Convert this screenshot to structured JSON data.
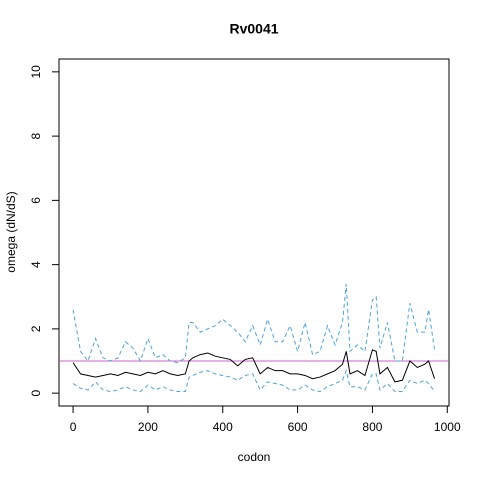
{
  "chart_data": {
    "type": "line",
    "title": "Rv0041",
    "xlabel": "codon",
    "ylabel": "omega (dN/dS)",
    "x": [
      0,
      20,
      40,
      60,
      80,
      100,
      120,
      140,
      160,
      180,
      200,
      220,
      240,
      260,
      280,
      300,
      310,
      320,
      340,
      360,
      380,
      400,
      420,
      440,
      460,
      480,
      500,
      520,
      540,
      560,
      580,
      600,
      620,
      640,
      660,
      680,
      700,
      720,
      730,
      740,
      760,
      780,
      800,
      810,
      820,
      840,
      860,
      880,
      900,
      920,
      940,
      950,
      966
    ],
    "series": [
      {
        "color": "#4aa3df",
        "dashed": true,
        "values": [
          2.6,
          1.3,
          1.0,
          1.7,
          1.1,
          1.0,
          1.1,
          1.6,
          1.4,
          1.0,
          1.7,
          1.1,
          1.2,
          1.0,
          0.95,
          1.1,
          2.2,
          2.2,
          1.9,
          2.0,
          2.1,
          2.3,
          2.1,
          1.9,
          1.6,
          2.1,
          1.5,
          2.3,
          1.6,
          1.6,
          2.1,
          1.3,
          2.2,
          1.2,
          1.3,
          2.1,
          1.5,
          2.2,
          3.4,
          1.3,
          1.5,
          1.3,
          2.9,
          3.0,
          1.4,
          2.2,
          1.0,
          1.0,
          2.8,
          1.9,
          1.9,
          2.6,
          1.35
        ]
      },
      {
        "color": "#000000",
        "dashed": false,
        "values": [
          0.95,
          0.6,
          0.55,
          0.5,
          0.55,
          0.6,
          0.55,
          0.65,
          0.6,
          0.55,
          0.65,
          0.6,
          0.7,
          0.6,
          0.55,
          0.6,
          1.0,
          1.1,
          1.2,
          1.25,
          1.15,
          1.1,
          1.05,
          0.85,
          1.05,
          1.1,
          0.6,
          0.8,
          0.7,
          0.7,
          0.6,
          0.6,
          0.55,
          0.45,
          0.5,
          0.6,
          0.7,
          0.9,
          1.3,
          0.6,
          0.7,
          0.55,
          1.35,
          1.3,
          0.6,
          0.8,
          0.35,
          0.4,
          1.0,
          0.8,
          0.9,
          1.0,
          0.45
        ]
      },
      {
        "color": "#4aa3df",
        "dashed": true,
        "values": [
          0.3,
          0.15,
          0.1,
          0.35,
          0.1,
          0.05,
          0.1,
          0.2,
          0.1,
          0.05,
          0.25,
          0.1,
          0.2,
          0.1,
          0.05,
          0.05,
          0.5,
          0.55,
          0.65,
          0.7,
          0.6,
          0.55,
          0.5,
          0.4,
          0.55,
          0.6,
          0.1,
          0.35,
          0.3,
          0.25,
          0.1,
          0.1,
          0.25,
          0.1,
          0.05,
          0.2,
          0.3,
          0.4,
          0.7,
          0.2,
          0.2,
          0.1,
          0.6,
          0.6,
          0.1,
          0.3,
          0.05,
          0.05,
          0.4,
          0.3,
          0.4,
          0.3,
          0.05
        ]
      }
    ],
    "hline": {
      "value": 1,
      "color": "#cc66cc"
    },
    "xlim": [
      -37.6,
      1004.6
    ],
    "xticks": [
      0,
      200,
      400,
      600,
      800,
      1000
    ],
    "ylim": [
      -0.4,
      10.4
    ],
    "yticks": [
      0,
      2,
      4,
      6,
      8,
      10
    ]
  }
}
